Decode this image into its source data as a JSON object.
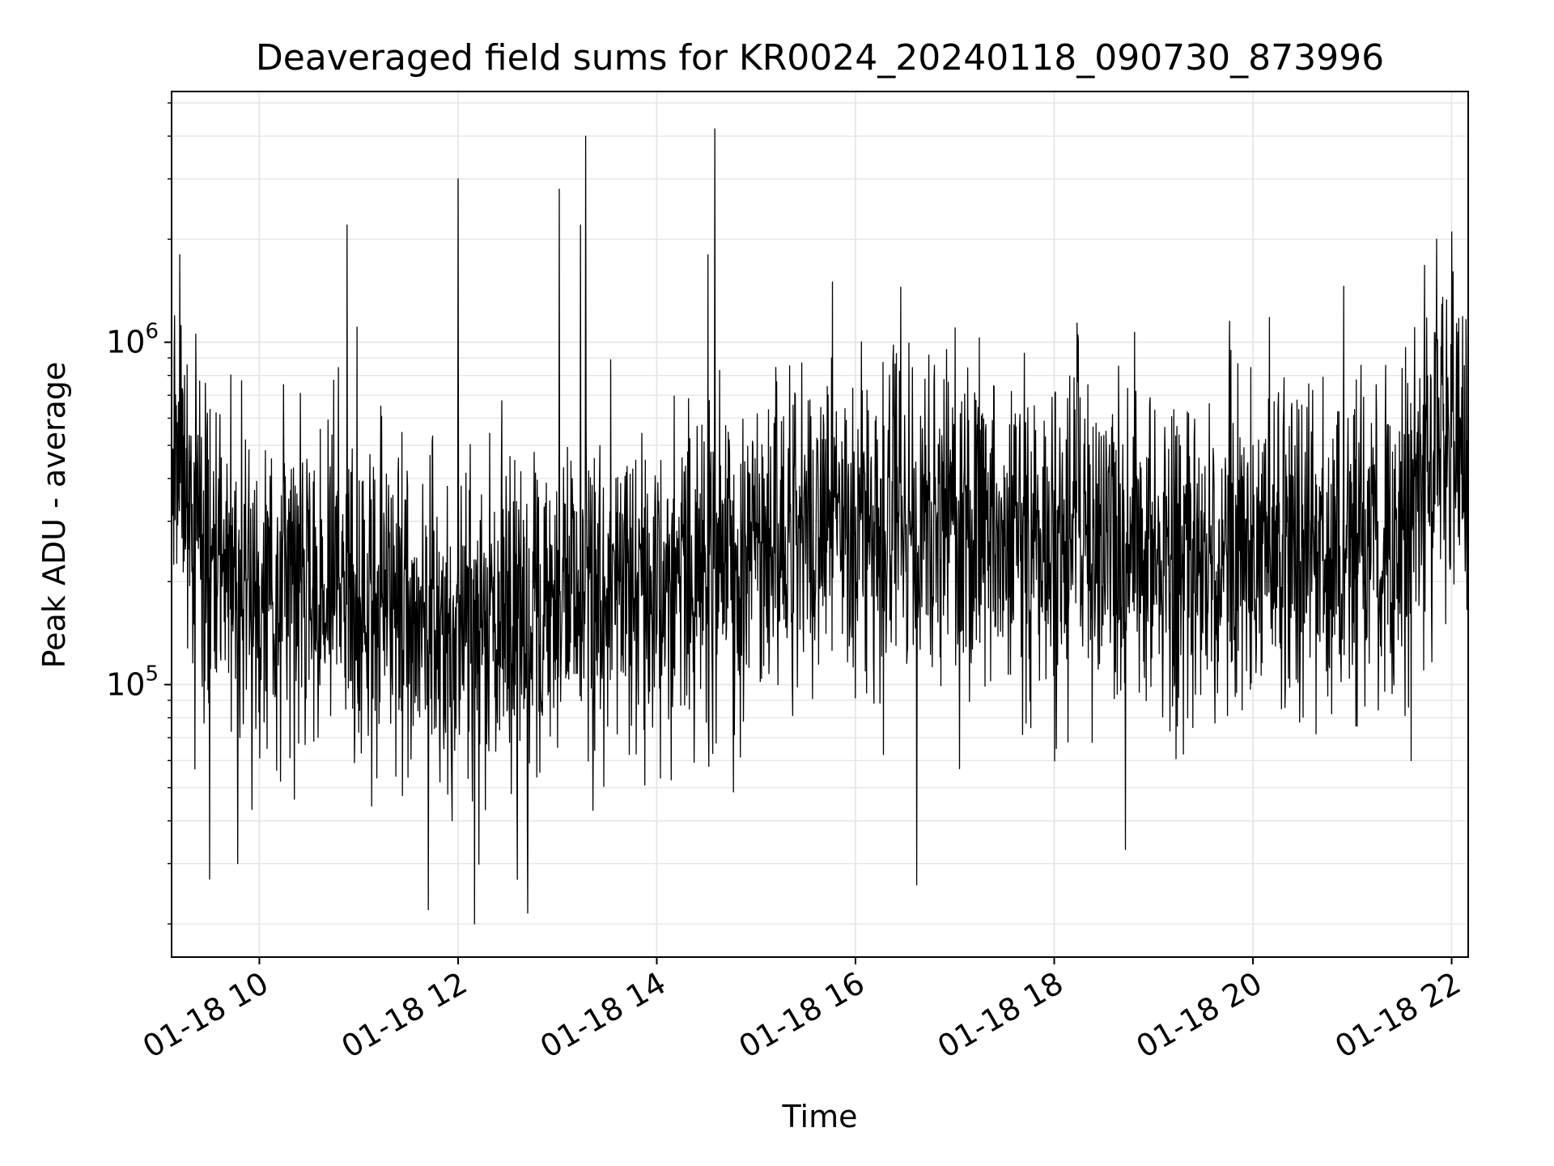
{
  "chart_data": {
    "type": "line",
    "title": "Deaveraged field sums for KR0024_20240118_090730_873996",
    "xlabel": "Time",
    "ylabel": "Peak ADU - average",
    "y_scale": "log",
    "ylim": [
      16000,
      5400000
    ],
    "xlim": [
      "2024-01-18 09:07",
      "2024-01-18 22:10"
    ],
    "grid": true,
    "line_color": "#000000",
    "x_tick_labels": [
      "01-18 10",
      "01-18 12",
      "01-18 14",
      "01-18 16",
      "01-18 18",
      "01-18 20",
      "01-18 22"
    ],
    "x_ticks": [
      "2024-01-18 10:00",
      "2024-01-18 12:00",
      "2024-01-18 14:00",
      "2024-01-18 16:00",
      "2024-01-18 18:00",
      "2024-01-18 20:00",
      "2024-01-18 22:00"
    ],
    "y_tick_labels": [
      {
        "value": 100000,
        "base": "10",
        "exp": "5"
      },
      {
        "value": 1000000,
        "base": "10",
        "exp": "6"
      }
    ],
    "series": [
      {
        "values_approx": [
          {
            "t": "2024-01-18 09:07",
            "y": 450000
          },
          {
            "t": "2024-01-18 09:30",
            "y": 250000
          },
          {
            "t": "2024-01-18 10:00",
            "y": 180000
          },
          {
            "t": "2024-01-18 10:30",
            "y": 190000
          },
          {
            "t": "2024-01-18 11:00",
            "y": 200000
          },
          {
            "t": "2024-01-18 11:30",
            "y": 170000
          },
          {
            "t": "2024-01-18 12:00",
            "y": 130000
          },
          {
            "t": "2024-01-18 12:30",
            "y": 160000
          },
          {
            "t": "2024-01-18 13:00",
            "y": 170000
          },
          {
            "t": "2024-01-18 13:30",
            "y": 180000
          },
          {
            "t": "2024-01-18 14:00",
            "y": 190000
          },
          {
            "t": "2024-01-18 14:30",
            "y": 210000
          },
          {
            "t": "2024-01-18 15:00",
            "y": 230000
          },
          {
            "t": "2024-01-18 15:30",
            "y": 250000
          },
          {
            "t": "2024-01-18 16:00",
            "y": 280000
          },
          {
            "t": "2024-01-18 16:30",
            "y": 290000
          },
          {
            "t": "2024-01-18 17:00",
            "y": 280000
          },
          {
            "t": "2024-01-18 17:30",
            "y": 270000
          },
          {
            "t": "2024-01-18 18:00",
            "y": 270000
          },
          {
            "t": "2024-01-18 18:30",
            "y": 260000
          },
          {
            "t": "2024-01-18 19:00",
            "y": 250000
          },
          {
            "t": "2024-01-18 19:30",
            "y": 240000
          },
          {
            "t": "2024-01-18 20:00",
            "y": 240000
          },
          {
            "t": "2024-01-18 20:30",
            "y": 230000
          },
          {
            "t": "2024-01-18 21:00",
            "y": 240000
          },
          {
            "t": "2024-01-18 21:30",
            "y": 250000
          },
          {
            "t": "2024-01-18 21:50",
            "y": 520000
          },
          {
            "t": "2024-01-18 22:10",
            "y": 500000
          }
        ],
        "spikes_approx": [
          {
            "t": "2024-01-18 09:12",
            "y": 1800000
          },
          {
            "t": "2024-01-18 10:53",
            "y": 2200000
          },
          {
            "t": "2024-01-18 12:00",
            "y": 3000000
          },
          {
            "t": "2024-01-18 13:01",
            "y": 2800000
          },
          {
            "t": "2024-01-18 13:14",
            "y": 2200000
          },
          {
            "t": "2024-01-18 13:17",
            "y": 4000000
          },
          {
            "t": "2024-01-18 14:35",
            "y": 4200000
          },
          {
            "t": "2024-01-18 14:31",
            "y": 1800000
          },
          {
            "t": "2024-01-18 15:46",
            "y": 1500000
          },
          {
            "t": "2024-01-18 21:51",
            "y": 2000000
          },
          {
            "t": "2024-01-18 22:00",
            "y": 2100000
          }
        ],
        "dips_approx": [
          {
            "t": "2024-01-18 09:30",
            "y": 27000
          },
          {
            "t": "2024-01-18 09:47",
            "y": 30000
          },
          {
            "t": "2024-01-18 11:42",
            "y": 22000
          },
          {
            "t": "2024-01-18 12:10",
            "y": 20000
          },
          {
            "t": "2024-01-18 12:42",
            "y": 21500
          },
          {
            "t": "2024-01-18 16:37",
            "y": 26000
          },
          {
            "t": "2024-01-18 18:43",
            "y": 33000
          }
        ]
      }
    ]
  }
}
